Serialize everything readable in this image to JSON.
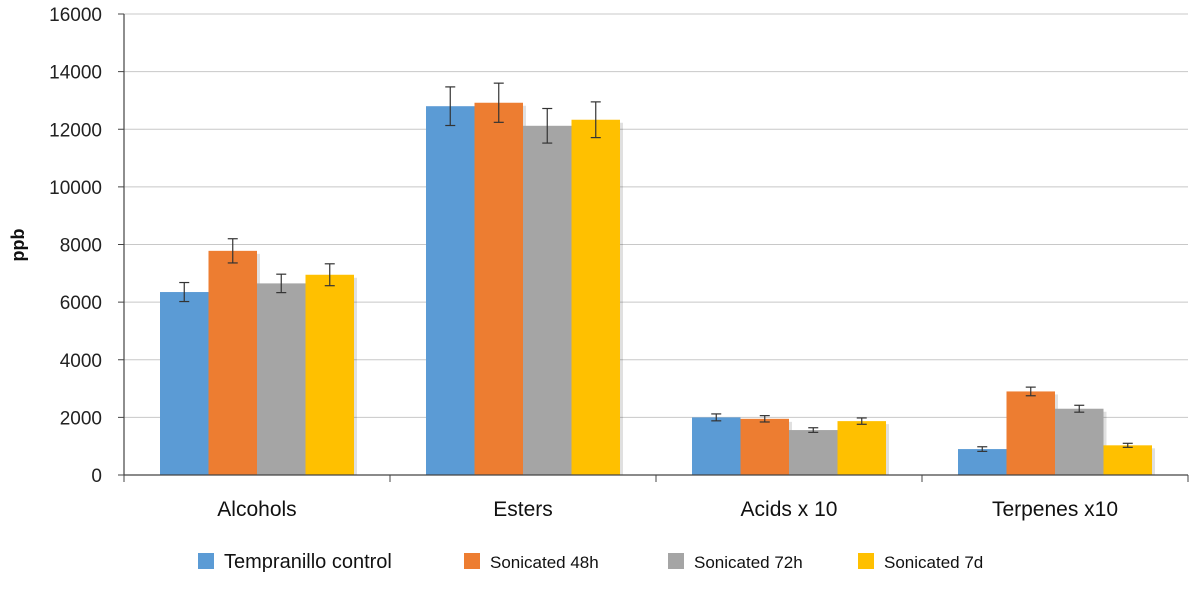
{
  "chart_data": {
    "type": "bar",
    "categories": [
      "Alcohols",
      "Esters",
      "Acids x 10",
      "Terpenes x10"
    ],
    "ylabel": "ppb",
    "xlabel": "",
    "ylim": [
      0,
      16000
    ],
    "yticks": [
      0,
      2000,
      4000,
      6000,
      8000,
      10000,
      12000,
      14000,
      16000
    ],
    "grid": true,
    "legend_position": "bottom",
    "series": [
      {
        "name": "Tempranillo control",
        "color": "#5B9BD5",
        "values": [
          6350,
          12800,
          2000,
          900
        ],
        "errors": [
          330,
          670,
          120,
          80
        ]
      },
      {
        "name": "Sonicated 48h",
        "color": "#ED7D31",
        "values": [
          7780,
          12920,
          1950,
          2900
        ],
        "errors": [
          420,
          680,
          110,
          150
        ]
      },
      {
        "name": "Sonicated 72h",
        "color": "#A5A5A5",
        "values": [
          6650,
          12120,
          1560,
          2300
        ],
        "errors": [
          320,
          600,
          80,
          120
        ]
      },
      {
        "name": "Sonicated 7d",
        "color": "#FFC000",
        "values": [
          6950,
          12330,
          1870,
          1030
        ],
        "errors": [
          380,
          620,
          110,
          70
        ]
      }
    ]
  }
}
